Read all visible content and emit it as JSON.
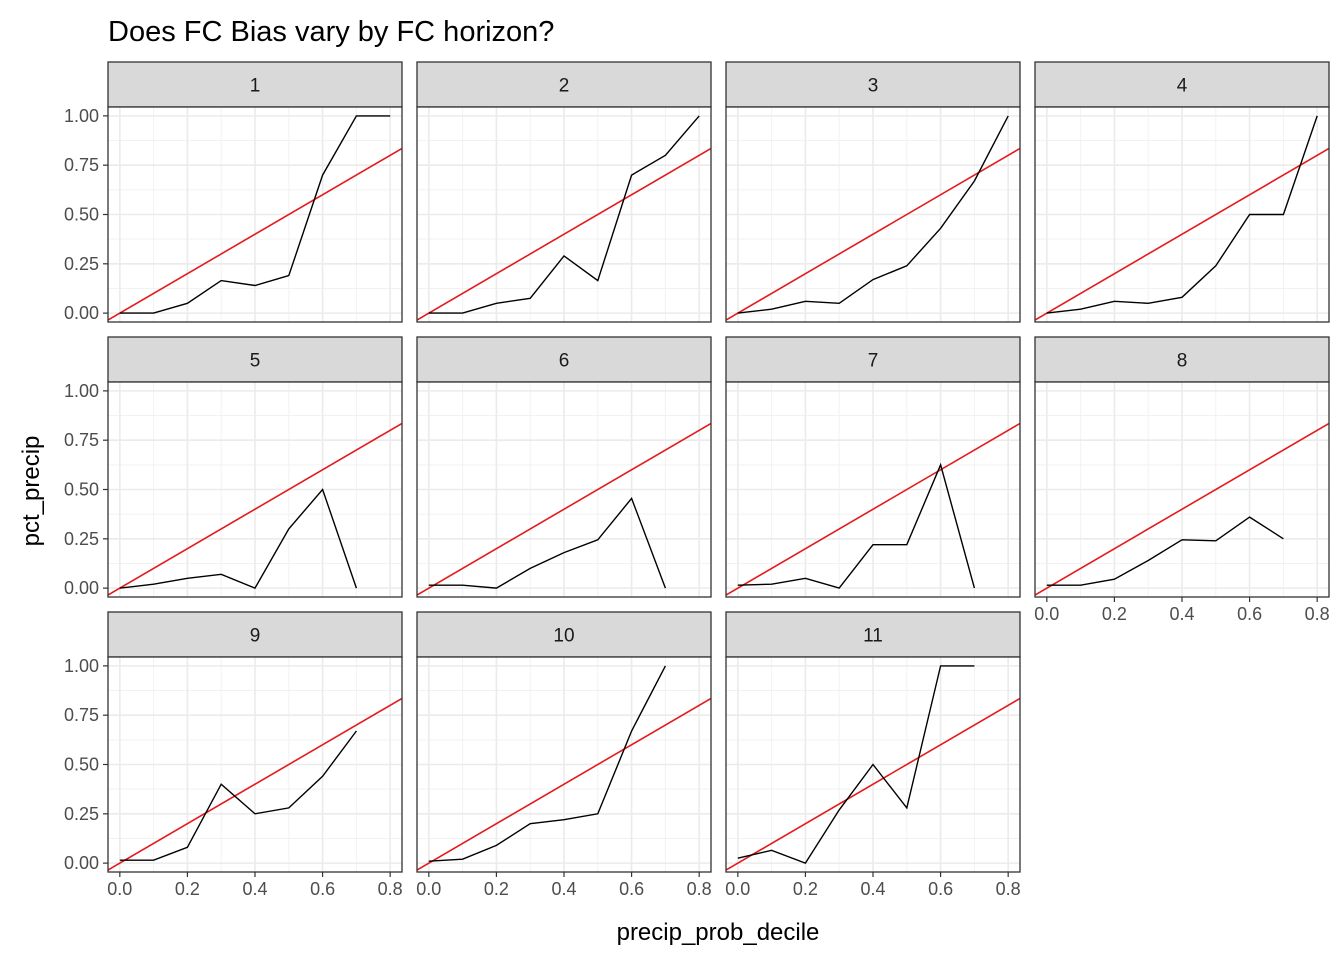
{
  "chart_data": {
    "type": "line",
    "title": "Does FC Bias vary by FC horizon?",
    "xlabel": "precip_prob_decile",
    "ylabel": "pct_precip",
    "xlim": [
      -0.035,
      0.835
    ],
    "ylim": [
      -0.045,
      1.045
    ],
    "x_ticks": [
      0.0,
      0.2,
      0.4,
      0.6,
      0.8
    ],
    "x_tick_labels": [
      "0.0",
      "0.2",
      "0.4",
      "0.6",
      "0.8"
    ],
    "y_ticks": [
      0.0,
      0.25,
      0.5,
      0.75,
      1.0
    ],
    "y_tick_labels": [
      "0.00",
      "0.25",
      "0.50",
      "0.75",
      "1.00"
    ],
    "grid": true,
    "facet_layout": {
      "rows": 3,
      "cols": 4
    },
    "reference_line": {
      "color": "#e41a1c",
      "description": "y = x"
    },
    "series_color": "#000000",
    "panels": [
      {
        "label": "1",
        "x": [
          0.0,
          0.1,
          0.2,
          0.3,
          0.4,
          0.5,
          0.6,
          0.7,
          0.8
        ],
        "y": [
          0.0,
          0.0,
          0.05,
          0.165,
          0.14,
          0.19,
          0.7,
          1.0,
          1.0
        ]
      },
      {
        "label": "2",
        "x": [
          0.0,
          0.1,
          0.2,
          0.3,
          0.4,
          0.5,
          0.6,
          0.7,
          0.8
        ],
        "y": [
          0.0,
          0.0,
          0.05,
          0.075,
          0.29,
          0.165,
          0.7,
          0.8,
          1.0
        ]
      },
      {
        "label": "3",
        "x": [
          0.0,
          0.1,
          0.2,
          0.3,
          0.4,
          0.5,
          0.6,
          0.7,
          0.8
        ],
        "y": [
          0.0,
          0.02,
          0.06,
          0.05,
          0.17,
          0.24,
          0.43,
          0.67,
          1.0
        ]
      },
      {
        "label": "4",
        "x": [
          0.0,
          0.1,
          0.2,
          0.3,
          0.4,
          0.5,
          0.6,
          0.7,
          0.8
        ],
        "y": [
          0.0,
          0.02,
          0.06,
          0.05,
          0.08,
          0.24,
          0.5,
          0.5,
          1.0
        ]
      },
      {
        "label": "5",
        "x": [
          0.0,
          0.1,
          0.2,
          0.3,
          0.4,
          0.5,
          0.6,
          0.7
        ],
        "y": [
          0.0,
          0.02,
          0.05,
          0.07,
          0.0,
          0.3,
          0.5,
          0.0
        ]
      },
      {
        "label": "6",
        "x": [
          0.0,
          0.1,
          0.2,
          0.3,
          0.4,
          0.5,
          0.6,
          0.7
        ],
        "y": [
          0.015,
          0.015,
          0.0,
          0.1,
          0.18,
          0.245,
          0.455,
          0.0
        ]
      },
      {
        "label": "7",
        "x": [
          0.0,
          0.1,
          0.2,
          0.3,
          0.4,
          0.5,
          0.6,
          0.7
        ],
        "y": [
          0.015,
          0.02,
          0.05,
          0.0,
          0.22,
          0.22,
          0.625,
          0.0
        ]
      },
      {
        "label": "8",
        "x": [
          0.0,
          0.1,
          0.2,
          0.3,
          0.4,
          0.5,
          0.6,
          0.7
        ],
        "y": [
          0.015,
          0.015,
          0.045,
          0.14,
          0.245,
          0.24,
          0.36,
          0.25
        ]
      },
      {
        "label": "9",
        "x": [
          0.0,
          0.1,
          0.2,
          0.3,
          0.4,
          0.5,
          0.6,
          0.7
        ],
        "y": [
          0.015,
          0.015,
          0.08,
          0.4,
          0.25,
          0.28,
          0.44,
          0.67
        ]
      },
      {
        "label": "10",
        "x": [
          0.0,
          0.1,
          0.2,
          0.3,
          0.4,
          0.5,
          0.6,
          0.7
        ],
        "y": [
          0.01,
          0.02,
          0.09,
          0.2,
          0.22,
          0.25,
          0.67,
          1.0
        ]
      },
      {
        "label": "11",
        "x": [
          0.0,
          0.1,
          0.2,
          0.3,
          0.4,
          0.5,
          0.6,
          0.7
        ],
        "y": [
          0.025,
          0.065,
          0.0,
          0.27,
          0.5,
          0.28,
          1.0,
          1.0
        ]
      }
    ]
  }
}
